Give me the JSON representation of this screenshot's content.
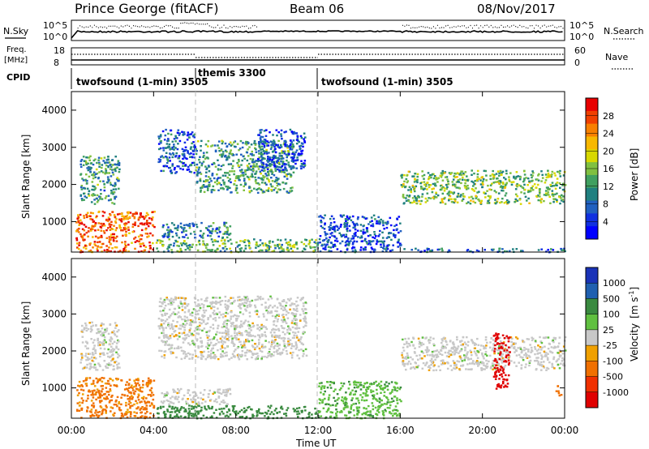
{
  "header": {
    "station": "Prince George (fitACF)",
    "beam": "Beam 06",
    "date": "08/Nov/2017"
  },
  "top_panels": {
    "nsky_label": "N.Sky",
    "nsky_ticks": [
      "10^5",
      "10^0"
    ],
    "nsearch_label": "N.Search",
    "nsearch_ticks": [
      "10^5",
      "10^0"
    ],
    "freq_label": "Freq.",
    "freq_unit": "[MHz]",
    "freq_ticks": [
      "18",
      "8"
    ],
    "nave_label": "Nave",
    "nave_ticks": [
      "60",
      "0"
    ],
    "cpid_label": "CPID",
    "cpid_segments": [
      {
        "label": "twofsound (1-min) 3505",
        "start_h": 0,
        "end_h": 6
      },
      {
        "label": "themis 3300",
        "start_h": 6,
        "end_h": 12
      },
      {
        "label": "twofsound (1-min) 3505",
        "start_h": 12,
        "end_h": 24
      }
    ]
  },
  "x_axis": {
    "label": "Time UT",
    "ticks": [
      "00:00",
      "04:00",
      "08:00",
      "12:00",
      "16:00",
      "20:00",
      "00:00"
    ]
  },
  "power_colorbar": {
    "title": "Power [dB]",
    "labels": [
      "28",
      "24",
      "20",
      "16",
      "12",
      "8",
      "4"
    ],
    "colors": [
      "#e80000",
      "#f04000",
      "#f88000",
      "#f8b800",
      "#d8d800",
      "#80c040",
      "#40a060",
      "#208080",
      "#2060c0",
      "#1030e0",
      "#0000ff"
    ]
  },
  "velocity_colorbar": {
    "title": "Velocity",
    "unit": "[m s",
    "unit_sup": "-1",
    "unit_end": "]",
    "labels": [
      "1000",
      "500",
      "100",
      "25",
      "-25",
      "-100",
      "-500",
      "-1000"
    ],
    "colors": [
      "#1a33b8",
      "#2060b0",
      "#3a8a40",
      "#60c040",
      "#c8c8c8",
      "#f0a000",
      "#f07000",
      "#f03000",
      "#e00000"
    ]
  },
  "chart_data": [
    {
      "type": "heatmap",
      "title": "Power",
      "xlabel": "",
      "ylabel": "Slant Range [km]",
      "xlim": [
        0,
        24
      ],
      "ylim": [
        180,
        4500
      ],
      "yticks": [
        1000,
        2000,
        3000,
        4000
      ],
      "colorbar_title": "Power [dB]",
      "colorbar_ticks": [
        4,
        8,
        12,
        16,
        20,
        24,
        28
      ],
      "regions": [
        {
          "t0": 0.2,
          "t1": 4.0,
          "r0": 200,
          "r1": 1300,
          "level": 26
        },
        {
          "t0": 0.4,
          "t1": 2.3,
          "r0": 1500,
          "r1": 2800,
          "level": 12
        },
        {
          "t0": 4.1,
          "t1": 12.0,
          "r0": 200,
          "r1": 550,
          "level": 14
        },
        {
          "t0": 4.3,
          "t1": 7.7,
          "r0": 580,
          "r1": 1000,
          "level": 10
        },
        {
          "t0": 4.2,
          "t1": 6.0,
          "r0": 2300,
          "r1": 3500,
          "level": 7
        },
        {
          "t0": 6.0,
          "t1": 10.8,
          "r0": 1800,
          "r1": 3200,
          "level": 12
        },
        {
          "t0": 9.0,
          "t1": 11.4,
          "r0": 2400,
          "r1": 3500,
          "level": 6
        },
        {
          "t0": 12.0,
          "t1": 16.0,
          "r0": 200,
          "r1": 1200,
          "level": 6
        },
        {
          "t0": 16.0,
          "t1": 24.0,
          "r0": 1500,
          "r1": 2400,
          "level": 15
        },
        {
          "t0": 16.0,
          "t1": 24.0,
          "r0": 200,
          "r1": 300,
          "level": 8
        }
      ]
    },
    {
      "type": "heatmap",
      "title": "Velocity",
      "xlabel": "Time UT",
      "ylabel": "Slant Range [km]",
      "xlim": [
        0,
        24
      ],
      "ylim": [
        180,
        4500
      ],
      "yticks": [
        1000,
        2000,
        3000,
        4000
      ],
      "colorbar_title": "Velocity [m s-1]",
      "colorbar_ticks": [
        -1000,
        -500,
        -100,
        -25,
        25,
        100,
        500,
        1000
      ],
      "regions": [
        {
          "t0": 0.2,
          "t1": 4.0,
          "r0": 200,
          "r1": 1300,
          "level": -120
        },
        {
          "t0": 0.4,
          "t1": 2.3,
          "r0": 1500,
          "r1": 2800,
          "level": 0
        },
        {
          "t0": 4.1,
          "t1": 12.0,
          "r0": 200,
          "r1": 550,
          "level": 150
        },
        {
          "t0": 4.3,
          "t1": 7.7,
          "r0": 580,
          "r1": 1000,
          "level": 0
        },
        {
          "t0": 4.2,
          "t1": 11.4,
          "r0": 1800,
          "r1": 3500,
          "level": 0
        },
        {
          "t0": 12.0,
          "t1": 16.0,
          "r0": 200,
          "r1": 1200,
          "level": 80
        },
        {
          "t0": 16.0,
          "t1": 24.0,
          "r0": 1500,
          "r1": 2400,
          "level": 0
        },
        {
          "t0": 20.5,
          "t1": 21.3,
          "r0": 1000,
          "r1": 2500,
          "level": -600
        },
        {
          "t0": 23.5,
          "t1": 23.8,
          "r0": 800,
          "r1": 1100,
          "level": -300
        }
      ]
    }
  ]
}
